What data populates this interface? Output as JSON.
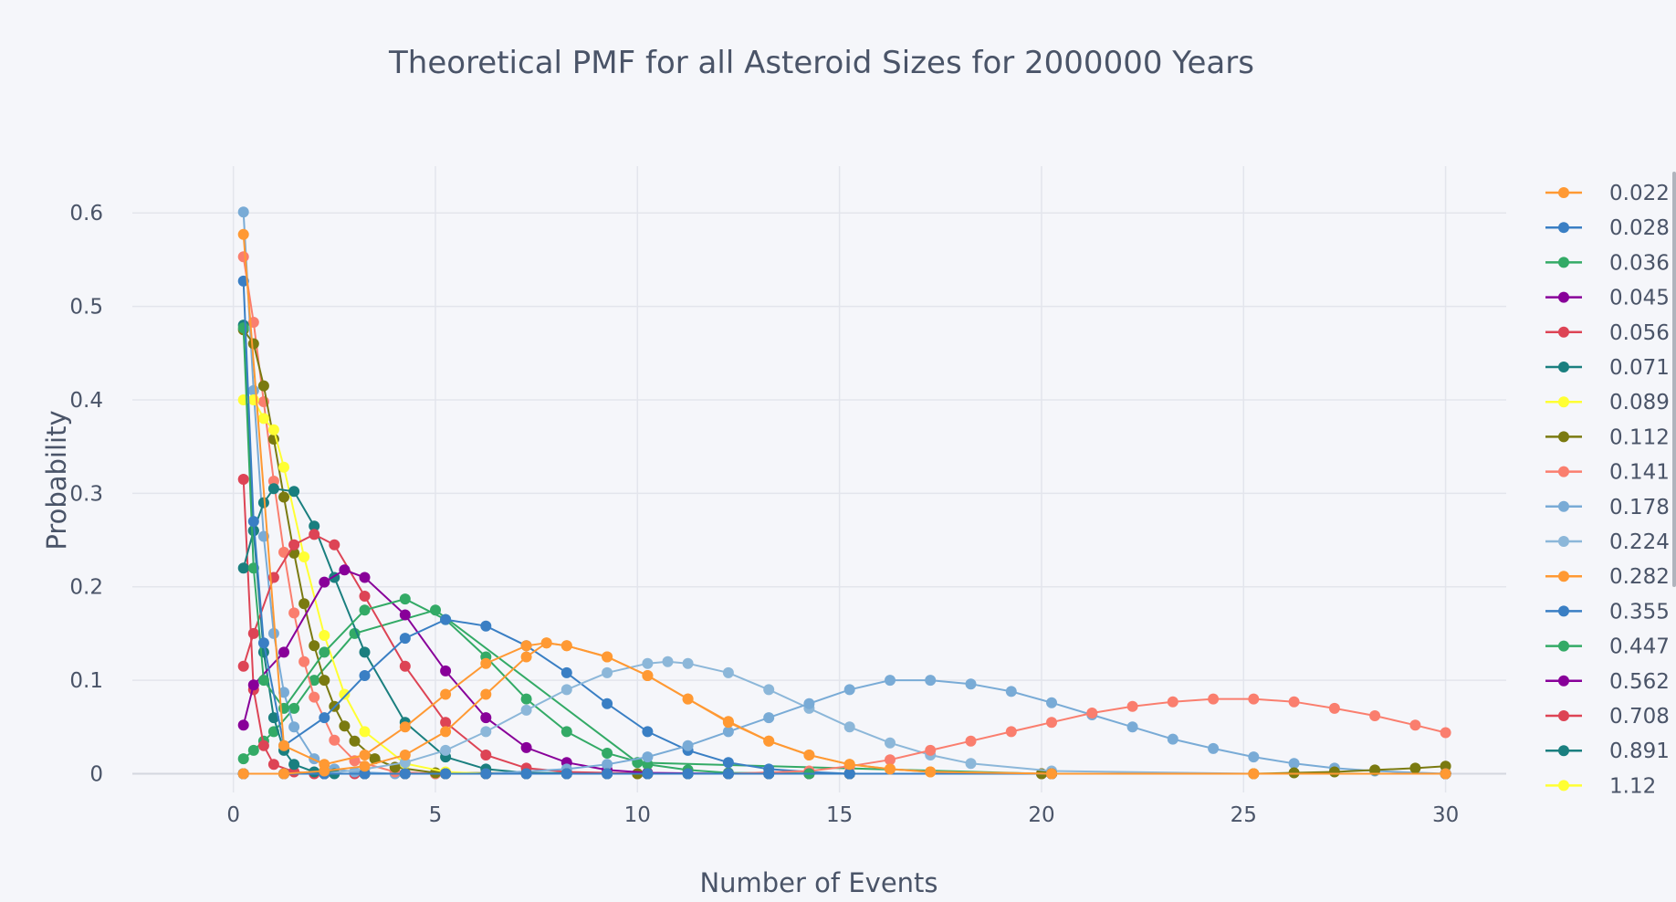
{
  "chart_data": {
    "type": "line",
    "title": "Theoretical PMF for all Asteroid Sizes for 2000000 Years",
    "xlabel": "Number of Events",
    "ylabel": "Probability",
    "xlim": [
      -2.5,
      31.5
    ],
    "ylim": [
      -0.02,
      0.65
    ],
    "x_ticks": [
      0,
      5,
      10,
      15,
      20,
      25,
      30
    ],
    "y_ticks": [
      0,
      0.1,
      0.2,
      0.3,
      0.4,
      0.5,
      0.6
    ],
    "grid": true,
    "legend_position": "right",
    "series": [
      {
        "name": "0.022",
        "color": "#ff9933",
        "x": [
          0.25,
          1.25,
          2.25,
          3.25,
          4.25,
          5.25,
          6.25,
          7.25,
          7.75,
          8.25,
          9.25,
          10.25,
          11.25,
          12.25,
          13.25,
          14.25,
          15.25,
          16.25,
          17.25,
          20.25,
          25.25,
          30.0
        ],
        "y": [
          0.0,
          0.0,
          0.003,
          0.008,
          0.02,
          0.045,
          0.085,
          0.125,
          0.14,
          0.137,
          0.125,
          0.105,
          0.08,
          0.055,
          0.035,
          0.02,
          0.01,
          0.005,
          0.002,
          0.0,
          0.0,
          0.0
        ]
      },
      {
        "name": "0.028",
        "color": "#3a7fc4",
        "x": [
          0.25,
          1.25,
          2.25,
          3.25,
          4.25,
          5.25,
          6.25,
          7.25,
          8.25,
          9.25,
          10.25,
          11.25,
          12.25,
          13.25,
          15.25,
          20.25,
          30.0
        ],
        "y": [
          0.0,
          0.0,
          0.0,
          0.0,
          0.0,
          0.0,
          0.0,
          0.0,
          0.0,
          0.0,
          0.0,
          0.0,
          0.0,
          0.0,
          0.0,
          0.0,
          0.0
        ]
      },
      {
        "name": "0.036",
        "color": "#33aa66",
        "x": [
          0.25,
          1.25,
          2.25,
          3.25,
          4.25,
          5.25,
          6.25,
          7.25,
          8.25,
          9.25,
          10.25,
          11.25,
          12.25,
          13.25,
          14.25,
          15.25,
          20.25,
          30.0
        ],
        "y": [
          0.0,
          0.0,
          0.0,
          0.0,
          0.0,
          0.0,
          0.0,
          0.0,
          0.0,
          0.0,
          0.0,
          0.0,
          0.0,
          0.0,
          0.0,
          0.0,
          0.0,
          0.0
        ]
      },
      {
        "name": "0.045",
        "color": "#880099",
        "x": [
          0.25,
          1.25,
          2.25,
          3.25,
          4.25,
          5.25,
          6.25,
          7.25,
          8.25,
          9.25,
          10.25,
          11.25,
          12.25,
          13.25,
          14.25,
          15.25,
          20.25,
          30.0
        ],
        "y": [
          0.0,
          0.0,
          0.0,
          0.0,
          0.0,
          0.0,
          0.0,
          0.0,
          0.0,
          0.0,
          0.0,
          0.0,
          0.0,
          0.0,
          0.0,
          0.0,
          0.0,
          0.0
        ]
      },
      {
        "name": "0.056",
        "color": "#dd4455",
        "x": [
          0.25,
          1.25,
          2.25,
          3.25,
          4.25,
          5.25,
          6.25,
          7.25,
          8.25,
          9.25,
          10.25,
          11.25,
          12.25,
          13.25,
          14.25,
          15.25,
          20.25,
          30.0
        ],
        "y": [
          0.0,
          0.0,
          0.0,
          0.0,
          0.0,
          0.0,
          0.0,
          0.0,
          0.0,
          0.0,
          0.0,
          0.0,
          0.0,
          0.0,
          0.0,
          0.0,
          0.0,
          0.0
        ]
      },
      {
        "name": "0.071",
        "color": "#1a7f7f",
        "x": [
          0.25,
          1.25,
          2.25,
          3.25,
          4.25,
          5.25,
          6.25,
          7.25,
          8.25,
          9.25,
          10.25,
          11.25,
          12.25,
          13.25,
          14.25,
          15.25,
          20.25,
          30.0
        ],
        "y": [
          0.0,
          0.0,
          0.0,
          0.0,
          0.0,
          0.0,
          0.0,
          0.0,
          0.0,
          0.0,
          0.0,
          0.0,
          0.0,
          0.0,
          0.0,
          0.0,
          0.0,
          0.0
        ]
      },
      {
        "name": "0.089",
        "color": "#ffff33",
        "x": [
          0.25,
          1.25,
          2.25,
          3.25,
          4.25,
          5.25,
          6.25,
          7.25,
          8.25,
          9.25,
          10.25,
          15.25,
          20.25,
          30.0
        ],
        "y": [
          0.0,
          0.0,
          0.0,
          0.0,
          0.0,
          0.0,
          0.0,
          0.0,
          0.0,
          0.0,
          0.0,
          0.0,
          0.0,
          0.0
        ]
      },
      {
        "name": "0.112",
        "color": "#7a7a10",
        "x": [
          0.25,
          5.25,
          10.25,
          15.25,
          20.25,
          25.25,
          26.25,
          27.25,
          28.25,
          29.25,
          30.0
        ],
        "y": [
          0.0,
          0.0,
          0.0,
          0.0,
          0.0,
          0.0,
          0.001,
          0.002,
          0.004,
          0.006,
          0.008
        ]
      },
      {
        "name": "0.141",
        "color": "#fa7e6e",
        "x": [
          0.25,
          5.25,
          10.25,
          12.25,
          14.25,
          15.25,
          16.25,
          17.25,
          18.25,
          19.25,
          20.25,
          21.25,
          22.25,
          23.25,
          24.25,
          25.25,
          26.25,
          27.25,
          28.25,
          29.25,
          30.0
        ],
        "y": [
          0.0,
          0.0,
          0.0,
          0.0,
          0.003,
          0.008,
          0.015,
          0.025,
          0.035,
          0.045,
          0.055,
          0.065,
          0.072,
          0.077,
          0.08,
          0.08,
          0.077,
          0.07,
          0.062,
          0.052,
          0.044
        ]
      },
      {
        "name": "0.178",
        "color": "#79abd6",
        "x": [
          0.25,
          2.25,
          4.25,
          6.25,
          8.25,
          9.25,
          10.25,
          11.25,
          12.25,
          13.25,
          14.25,
          15.25,
          16.25,
          17.25,
          18.25,
          19.25,
          20.25,
          21.25,
          22.25,
          23.25,
          24.25,
          25.25,
          26.25,
          27.25,
          28.25,
          30.0
        ],
        "y": [
          0.0,
          0.0,
          0.0,
          0.0,
          0.005,
          0.01,
          0.018,
          0.03,
          0.045,
          0.06,
          0.075,
          0.09,
          0.1,
          0.1,
          0.096,
          0.088,
          0.076,
          0.063,
          0.05,
          0.037,
          0.027,
          0.018,
          0.011,
          0.006,
          0.003,
          0.0
        ]
      },
      {
        "name": "0.224",
        "color": "#8cb7d9",
        "x": [
          0.25,
          2.25,
          3.25,
          4.25,
          5.25,
          6.25,
          7.25,
          8.25,
          9.25,
          10.25,
          10.75,
          11.25,
          12.25,
          13.25,
          14.25,
          15.25,
          16.25,
          17.25,
          18.25,
          20.25,
          25.25,
          30.0
        ],
        "y": [
          0.0,
          0.0,
          0.005,
          0.012,
          0.025,
          0.045,
          0.068,
          0.09,
          0.108,
          0.118,
          0.12,
          0.118,
          0.108,
          0.09,
          0.07,
          0.05,
          0.033,
          0.02,
          0.011,
          0.003,
          0.0,
          0.0
        ]
      },
      {
        "name": "0.282",
        "color": "#ff9933",
        "x": [
          0.25,
          1.25,
          2.25,
          3.25,
          4.25,
          5.25,
          6.25,
          7.25,
          7.75,
          8.25,
          9.25,
          10.25,
          11.25,
          12.25,
          13.25,
          14.25,
          15.25,
          16.25,
          17.25,
          20.25,
          25.25,
          30.0
        ],
        "y": [
          0.577,
          0.03,
          0.01,
          0.02,
          0.05,
          0.085,
          0.118,
          0.137,
          0.14,
          0.137,
          0.125,
          0.105,
          0.08,
          0.056,
          0.035,
          0.02,
          0.01,
          0.005,
          0.002,
          0.0,
          0.0,
          0.0
        ]
      },
      {
        "name": "0.355",
        "color": "#3a7fc4",
        "x": [
          0.25,
          0.5,
          0.75,
          1.25,
          2.25,
          3.25,
          4.25,
          5.25,
          6.25,
          7.25,
          8.25,
          9.25,
          10.25,
          11.25,
          12.25,
          13.25,
          14.25,
          15.25,
          20.25,
          30.0
        ],
        "y": [
          0.527,
          0.27,
          0.14,
          0.03,
          0.06,
          0.105,
          0.145,
          0.165,
          0.158,
          0.137,
          0.108,
          0.075,
          0.045,
          0.025,
          0.012,
          0.005,
          0.002,
          0.0,
          0.0,
          0.0
        ]
      },
      {
        "name": "0.447",
        "color": "#33aa66",
        "x": [
          0.25,
          0.5,
          0.75,
          1.25,
          2.25,
          3.25,
          4.25,
          5.25,
          6.25,
          7.25,
          8.25,
          9.25,
          10.25,
          11.25,
          12.25,
          15.25,
          20.25,
          30.0
        ],
        "y": [
          0.477,
          0.22,
          0.1,
          0.07,
          0.13,
          0.175,
          0.187,
          0.165,
          0.125,
          0.08,
          0.045,
          0.022,
          0.01,
          0.004,
          0.001,
          0.0,
          0.0,
          0.0
        ]
      },
      {
        "name": "0.562",
        "color": "#880099",
        "x": [
          0.25,
          0.5,
          1.25,
          2.25,
          2.75,
          3.25,
          4.25,
          5.25,
          6.25,
          7.25,
          8.25,
          9.25,
          10.25,
          12.25,
          15.25,
          20.25,
          30.0
        ],
        "y": [
          0.052,
          0.095,
          0.13,
          0.205,
          0.218,
          0.21,
          0.17,
          0.11,
          0.06,
          0.028,
          0.012,
          0.004,
          0.001,
          0.0,
          0.0,
          0.0,
          0.0
        ]
      },
      {
        "name": "0.708",
        "color": "#dd4455",
        "x": [
          0.25,
          0.5,
          1.0,
          1.5,
          2.0,
          2.5,
          3.25,
          4.25,
          5.25,
          6.25,
          7.25,
          8.25,
          10.25,
          15.25,
          20.25,
          30.0
        ],
        "y": [
          0.115,
          0.15,
          0.21,
          0.245,
          0.256,
          0.245,
          0.19,
          0.115,
          0.055,
          0.02,
          0.006,
          0.002,
          0.0,
          0.0,
          0.0,
          0.0
        ]
      },
      {
        "name": "0.891",
        "color": "#1a7f7f",
        "x": [
          0.25,
          0.5,
          0.75,
          1.0,
          1.5,
          2.0,
          2.5,
          3.25,
          4.25,
          5.25,
          6.25,
          7.25,
          10.25,
          15.25,
          20.25,
          30.0
        ],
        "y": [
          0.22,
          0.26,
          0.29,
          0.305,
          0.302,
          0.265,
          0.21,
          0.13,
          0.055,
          0.018,
          0.005,
          0.001,
          0.0,
          0.0,
          0.0,
          0.0
        ]
      },
      {
        "name": "1.12",
        "color": "#ffff33",
        "x": [
          0.25,
          0.5,
          0.75,
          1.0,
          1.25,
          1.75,
          2.25,
          2.75,
          3.25,
          4.25,
          5.25,
          6.25,
          10.25,
          15.25,
          20.25,
          30.0
        ],
        "y": [
          0.4,
          0.4,
          0.38,
          0.368,
          0.328,
          0.232,
          0.148,
          0.085,
          0.045,
          0.011,
          0.002,
          0.0,
          0.0,
          0.0,
          0.0,
          0.0
        ]
      },
      {
        "name": "",
        "color": "#1a7f7f",
        "x": [
          0.25,
          0.5,
          0.75,
          1.0,
          1.25,
          1.5,
          2.0,
          2.5,
          3.25,
          4.25,
          5.25,
          10.25,
          20.25,
          30.0
        ],
        "y": [
          0.48,
          0.26,
          0.13,
          0.06,
          0.025,
          0.01,
          0.002,
          0.0,
          0.0,
          0.0,
          0.0,
          0.0,
          0.0,
          0.0
        ]
      },
      {
        "name": "",
        "color": "#7a7a10",
        "x": [
          0.25,
          0.5,
          0.75,
          1.0,
          1.25,
          1.5,
          1.75,
          2.0,
          2.25,
          2.5,
          2.75,
          3.0,
          3.5,
          4.0,
          5.0,
          10.0,
          20.0,
          30.0
        ],
        "y": [
          0.475,
          0.46,
          0.415,
          0.358,
          0.296,
          0.236,
          0.182,
          0.137,
          0.1,
          0.072,
          0.051,
          0.035,
          0.016,
          0.007,
          0.001,
          0.0,
          0.0,
          0.0
        ]
      },
      {
        "name": "",
        "color": "#fa7e6e",
        "x": [
          0.25,
          0.5,
          0.75,
          1.0,
          1.25,
          1.5,
          1.75,
          2.0,
          2.5,
          3.0,
          4.0,
          5.0,
          10.0,
          20.0,
          30.0
        ],
        "y": [
          0.553,
          0.483,
          0.398,
          0.313,
          0.237,
          0.172,
          0.12,
          0.082,
          0.036,
          0.014,
          0.002,
          0.0,
          0.0,
          0.0,
          0.0
        ]
      },
      {
        "name": "",
        "color": "#79abd6",
        "x": [
          0.25,
          0.5,
          0.75,
          1.0,
          1.25,
          1.5,
          2.0,
          2.5,
          3.0,
          4.0,
          5.0,
          10.0,
          20.0,
          30.0
        ],
        "y": [
          0.601,
          0.41,
          0.254,
          0.15,
          0.087,
          0.05,
          0.016,
          0.005,
          0.002,
          0.0,
          0.0,
          0.0,
          0.0,
          0.0
        ]
      },
      {
        "name": "",
        "color": "#dd4455",
        "x": [
          0.25,
          0.5,
          0.75,
          1.0,
          1.5,
          2.0,
          3.0,
          5.0,
          10.0,
          20.0,
          30.0
        ],
        "y": [
          0.315,
          0.09,
          0.03,
          0.01,
          0.002,
          0.0,
          0.0,
          0.0,
          0.0,
          0.0,
          0.0
        ]
      },
      {
        "name": "",
        "color": "#33aa66",
        "x": [
          0.25,
          0.5,
          0.75,
          1.0,
          1.5,
          2.0,
          3.0,
          5.0,
          10.0,
          20.0,
          30.0
        ],
        "y": [
          0.016,
          0.025,
          0.035,
          0.045,
          0.07,
          0.1,
          0.15,
          0.175,
          0.012,
          0.0,
          0.0
        ]
      }
    ]
  }
}
